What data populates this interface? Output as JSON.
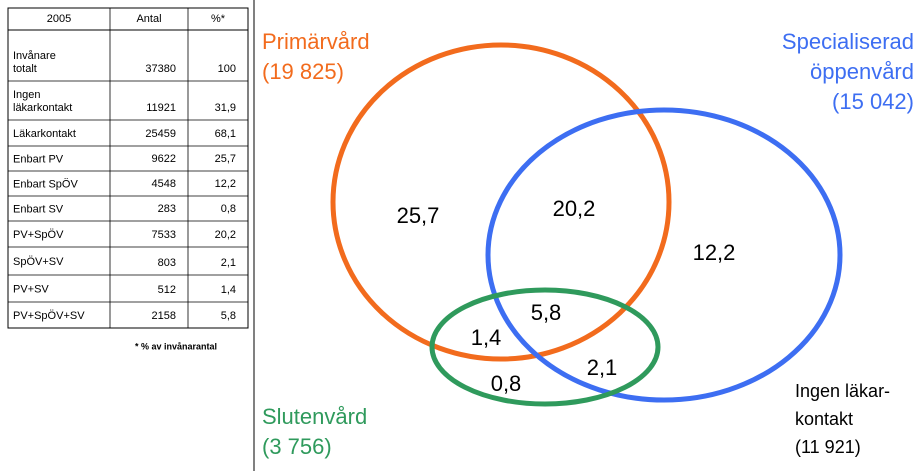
{
  "table": {
    "header": [
      "2005",
      "Antal",
      "%*"
    ],
    "rows": [
      [
        "Invånare\ntotalt",
        "37380",
        "100"
      ],
      [
        "Ingen\nläkarkontakt",
        "11921",
        "31,9"
      ],
      [
        "Läkarkontakt",
        "25459",
        "68,1"
      ],
      [
        "Enbart PV",
        "9622",
        "25,7"
      ],
      [
        "Enbart SpÖV",
        "4548",
        "12,2"
      ],
      [
        "Enbart SV",
        "283",
        "0,8"
      ],
      [
        "PV+SpÖV",
        "7533",
        "20,2"
      ],
      [
        "SpÖV+SV",
        "803",
        "2,1"
      ],
      [
        "PV+SV",
        "512",
        "1,4"
      ],
      [
        "PV+SpÖV+SV",
        "2158",
        "5,8"
      ]
    ],
    "footnote": "* % av invånarantal"
  },
  "venn": {
    "sets": [
      {
        "lines": [
          "Primärvård",
          "(19 825)"
        ],
        "color": "#f26b1d"
      },
      {
        "lines": [
          "Specialiserad",
          "öppenvård",
          "(15 042)"
        ],
        "color": "#3d6ef2"
      },
      {
        "lines": [
          "Slutenvård",
          "(3 756)"
        ],
        "color": "#2f9a5c"
      }
    ],
    "regions": [
      "25,7",
      "20,2",
      "12,2",
      "5,8",
      "1,4",
      "2,1",
      "0,8"
    ],
    "outside": [
      "Ingen läkar-",
      "kontakt",
      "(11 921)"
    ]
  }
}
